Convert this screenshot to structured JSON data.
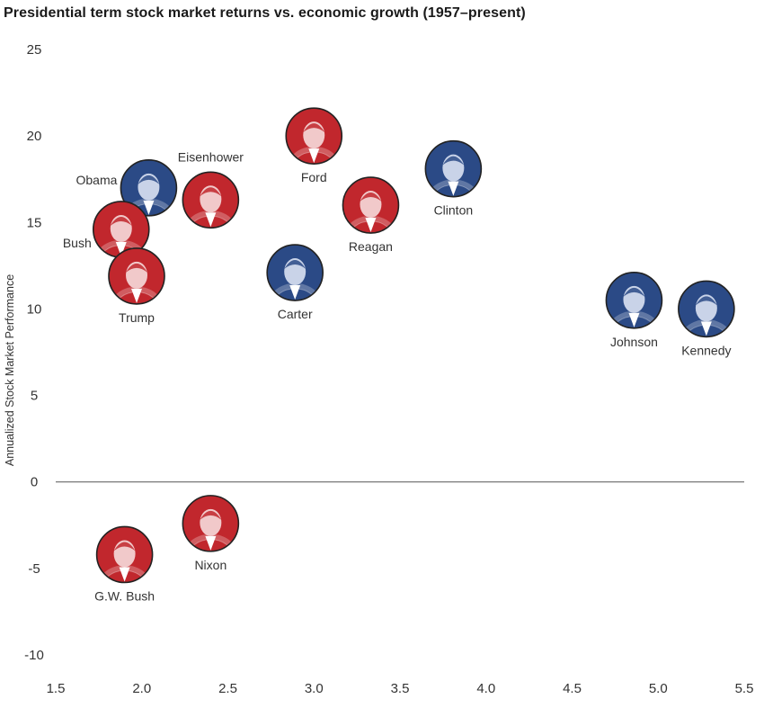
{
  "title": "Presidential term stock market returns vs. economic growth (1957–present)",
  "chart_data": {
    "type": "scatter",
    "title": "Presidential term stock market returns vs. economic growth (1957–present)",
    "xlabel": "",
    "ylabel": "Annualized Stock Market Performance",
    "xlim": [
      1.5,
      5.5
    ],
    "ylim": [
      -10,
      25
    ],
    "xticks": [
      "1.5",
      "2.0",
      "2.5",
      "3.0",
      "3.5",
      "4.0",
      "4.5",
      "5.0",
      "5.5"
    ],
    "yticks": [
      "25",
      "20",
      "15",
      "10",
      "5",
      "0",
      "-5",
      "-10"
    ],
    "grid": false,
    "points": [
      {
        "label": "Obama",
        "x": 2.04,
        "y": 17.0,
        "party": "democrat",
        "label_pos": "left"
      },
      {
        "label": "Eisenhower",
        "x": 2.4,
        "y": 16.3,
        "party": "republican",
        "label_pos": "above"
      },
      {
        "label": "Bush",
        "x": 1.88,
        "y": 14.6,
        "party": "republican",
        "label_pos": "left"
      },
      {
        "label": "Trump",
        "x": 1.97,
        "y": 11.9,
        "party": "republican",
        "label_pos": "below"
      },
      {
        "label": "Ford",
        "x": 3.0,
        "y": 20.0,
        "party": "republican",
        "label_pos": "below"
      },
      {
        "label": "Reagan",
        "x": 3.33,
        "y": 16.0,
        "party": "republican",
        "label_pos": "below"
      },
      {
        "label": "Carter",
        "x": 2.89,
        "y": 12.1,
        "party": "democrat",
        "label_pos": "below"
      },
      {
        "label": "Clinton",
        "x": 3.81,
        "y": 18.1,
        "party": "democrat",
        "label_pos": "below"
      },
      {
        "label": "Johnson",
        "x": 4.86,
        "y": 10.5,
        "party": "democrat",
        "label_pos": "below"
      },
      {
        "label": "Kennedy",
        "x": 5.28,
        "y": 10.0,
        "party": "democrat",
        "label_pos": "below"
      },
      {
        "label": "Nixon",
        "x": 2.4,
        "y": -2.4,
        "party": "republican",
        "label_pos": "below"
      },
      {
        "label": "G.W. Bush",
        "x": 1.9,
        "y": -4.2,
        "party": "republican",
        "label_pos": "below"
      }
    ],
    "colors": {
      "republican": "#c1272d",
      "democrat": "#2b4a86"
    }
  }
}
